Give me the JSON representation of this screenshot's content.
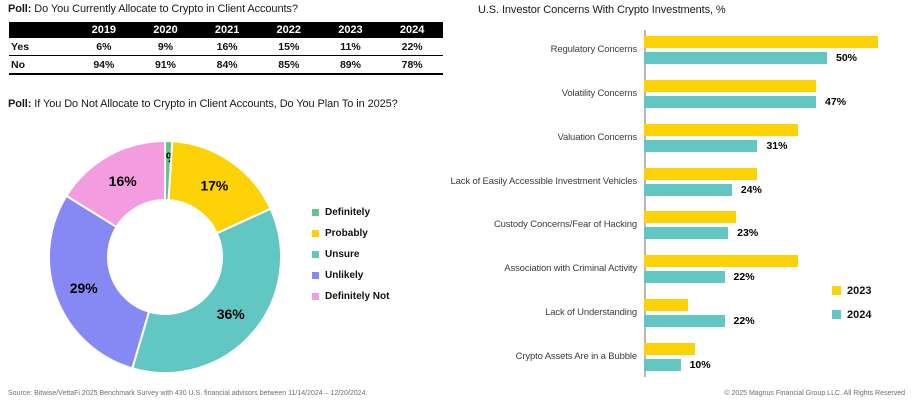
{
  "left": {
    "allocation_poll": {
      "title_prefix": "Poll:",
      "title_rest": " Do You Currently Allocate to Crypto in Client Accounts?",
      "table": {
        "header_bg": "#000000",
        "years": [
          "2019",
          "2020",
          "2021",
          "2022",
          "2023",
          "2024"
        ],
        "rows": [
          {
            "label": "Yes",
            "values": [
              "6%",
              "9%",
              "16%",
              "15%",
              "11%",
              "22%"
            ]
          },
          {
            "label": "No",
            "values": [
              "94%",
              "91%",
              "84%",
              "85%",
              "89%",
              "78%"
            ]
          }
        ]
      }
    },
    "plan_poll": {
      "title_prefix": "Poll:",
      "title_rest": " If You Do Not Allocate to Crypto in Client Accounts, Do You Plan To in 2025?"
    }
  },
  "chart_data": [
    {
      "type": "pie",
      "subtype": "donut",
      "title": "Poll: If You Do Not Allocate to Crypto in Client Accounts, Do You Plan To in 2025?",
      "labels": [
        "Definitely",
        "Probably",
        "Unsure",
        "Unlikely",
        "Definitely Not"
      ],
      "values": [
        1,
        17,
        36,
        29,
        16
      ],
      "value_labels": [
        "1%",
        "17%",
        "36%",
        "29%",
        "16%"
      ],
      "colors": [
        "#6BC08F",
        "#FCD207",
        "#62C6C3",
        "#8689F3",
        "#F39CE0"
      ],
      "start_angle_deg": 0,
      "direction": "clockwise",
      "legend_position": "right"
    },
    {
      "type": "bar",
      "orientation": "horizontal",
      "title": "U.S. Investor Concerns With Crypto Investments, %",
      "categories": [
        "Regulatory Concerns",
        "Volatility Concerns",
        "Valuation Concerns",
        "Lack of Easily Accessible Investment Vehicles",
        "Custody Concerns/Fear of Hacking",
        "Association with Criminal Activity",
        "Lack of Understanding",
        "Crypto Assets Are in a Bubble"
      ],
      "series": [
        {
          "name": "2023",
          "color": "#FCD207",
          "values": [
            64,
            47,
            42,
            31,
            25,
            42,
            12,
            14
          ],
          "value_labels_shown": false
        },
        {
          "name": "2024",
          "color": "#62C6C3",
          "values": [
            50,
            47,
            31,
            24,
            23,
            22,
            22,
            10
          ],
          "value_labels_shown": true,
          "value_labels": [
            "50%",
            "47%",
            "31%",
            "24%",
            "23%",
            "22%",
            "22%",
            "10%"
          ]
        }
      ],
      "xlim": [
        0,
        70
      ],
      "grid": false,
      "legend_position": "right"
    }
  ],
  "footer": {
    "source": "Source: Bitwise/VettaFi 2025 Benchmark Survey with 430 U.S. financial advisors between 11/14/2024 – 12/20/2024.",
    "copyright": "© 2025 Magnus Financial Group LLC. All Rights Reserved"
  }
}
